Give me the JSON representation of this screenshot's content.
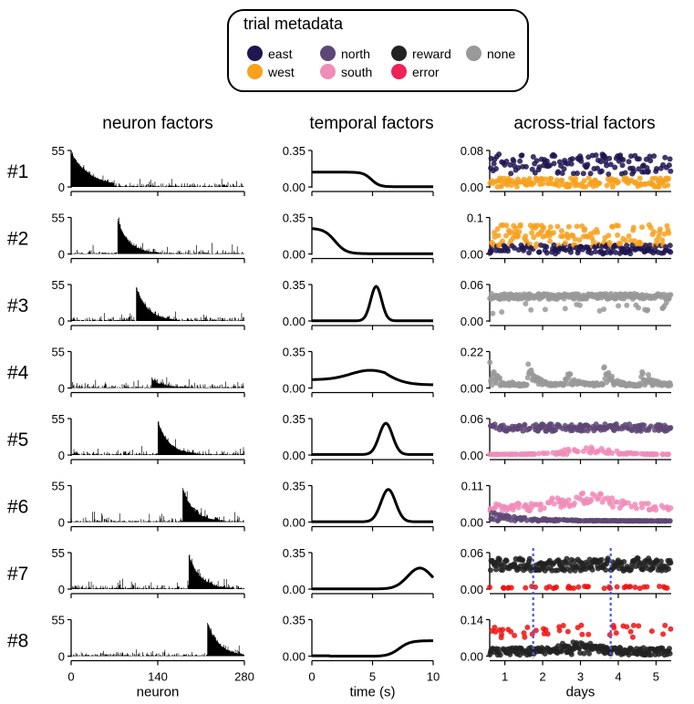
{
  "legend": {
    "title": "trial metadata",
    "items": [
      {
        "label": "east",
        "color": "#1f1550"
      },
      {
        "label": "west",
        "color": "#f7a11c"
      },
      {
        "label": "north",
        "color": "#5e4676"
      },
      {
        "label": "south",
        "color": "#f08cb8"
      },
      {
        "label": "reward",
        "color": "#222222"
      },
      {
        "label": "error",
        "color": "#ee2255"
      },
      {
        "label": "none",
        "color": "#999999"
      }
    ]
  },
  "columns": {
    "neuron_title": "neuron factors",
    "temporal_title": "temporal factors",
    "trial_title": "across-trial factors",
    "neuron_xlabel": "neuron",
    "temporal_xlabel": "time (s)",
    "trial_xlabel": "days",
    "neuron_xticks": [
      "0",
      "140",
      "280"
    ],
    "temporal_xticks": [
      "0",
      "5",
      "10"
    ],
    "trial_xticks": [
      "1",
      "2",
      "3",
      "4",
      "5"
    ]
  },
  "chart_data": {
    "type": "multi-panel",
    "rows": [
      {
        "label": "#1",
        "neuron_ymax": "55",
        "temporal_ymax": "0.35",
        "trial_ymax": "0.08",
        "trial_color": "direction",
        "neuron_peak_index": 0,
        "temporal_shape": "early_plateau"
      },
      {
        "label": "#2",
        "neuron_ymax": "55",
        "temporal_ymax": "0.35",
        "trial_ymax": "0.1",
        "trial_color": "direction",
        "neuron_peak_index": 75,
        "temporal_shape": "early_decay"
      },
      {
        "label": "#3",
        "neuron_ymax": "55",
        "temporal_ymax": "0.35",
        "trial_ymax": "0.06",
        "trial_color": "none",
        "neuron_peak_index": 105,
        "temporal_shape": "peak_5.3"
      },
      {
        "label": "#4",
        "neuron_ymax": "55",
        "temporal_ymax": "0.35",
        "trial_ymax": "0.22",
        "trial_color": "none",
        "neuron_peak_index": 130,
        "temporal_shape": "broad_4.8"
      },
      {
        "label": "#5",
        "neuron_ymax": "55",
        "temporal_ymax": "0.35",
        "trial_ymax": "0.06",
        "trial_color": "ns",
        "neuron_peak_index": 140,
        "temporal_shape": "peak_6.0"
      },
      {
        "label": "#6",
        "neuron_ymax": "55",
        "temporal_ymax": "0.35",
        "trial_ymax": "0.11",
        "trial_color": "ns",
        "neuron_peak_index": 180,
        "temporal_shape": "peak_6.3"
      },
      {
        "label": "#7",
        "neuron_ymax": "55",
        "temporal_ymax": "0.35",
        "trial_ymax": "0.06",
        "trial_color": "reward",
        "neuron_peak_index": 190,
        "temporal_shape": "late_8.8"
      },
      {
        "label": "#8",
        "neuron_ymax": "55",
        "temporal_ymax": "0.35",
        "trial_ymax": "0.14",
        "trial_color": "reward",
        "neuron_peak_index": 220,
        "temporal_shape": "late_rise"
      }
    ],
    "neuron_xlim": [
      0,
      280
    ],
    "temporal_xlim": [
      0,
      10
    ],
    "trial_xlim": [
      0.6,
      5.4
    ],
    "session_boundaries_days": [
      1.75,
      3.8
    ]
  }
}
